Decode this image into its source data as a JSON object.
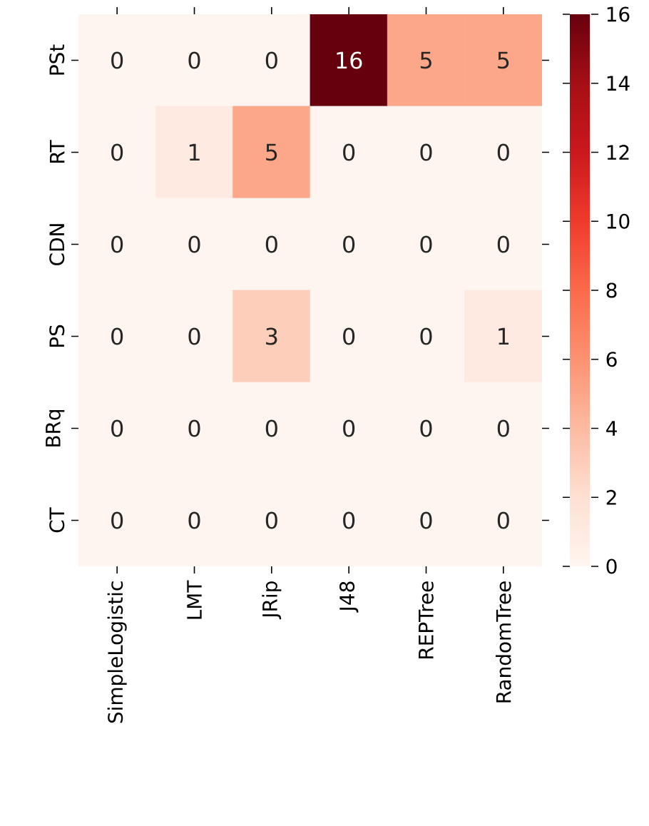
{
  "chart_data": {
    "type": "heatmap",
    "categories": [
      "SimpleLogistic",
      "LMT",
      "JRip",
      "J48",
      "REPTree",
      "RandomTree"
    ],
    "y_categories": [
      "PSt",
      "RT",
      "CDN",
      "PS",
      "BRq",
      "CT"
    ],
    "cells": [
      [
        0,
        0,
        0,
        16,
        5,
        5
      ],
      [
        0,
        1,
        5,
        0,
        0,
        0
      ],
      [
        0,
        0,
        0,
        0,
        0,
        0
      ],
      [
        0,
        0,
        3,
        0,
        0,
        1
      ],
      [
        0,
        0,
        0,
        0,
        0,
        0
      ],
      [
        0,
        0,
        0,
        0,
        0,
        0
      ]
    ],
    "data_labels": true,
    "clim": [
      0,
      16
    ],
    "cticks": [
      0,
      2,
      4,
      6,
      8,
      10,
      12,
      14,
      16
    ]
  }
}
